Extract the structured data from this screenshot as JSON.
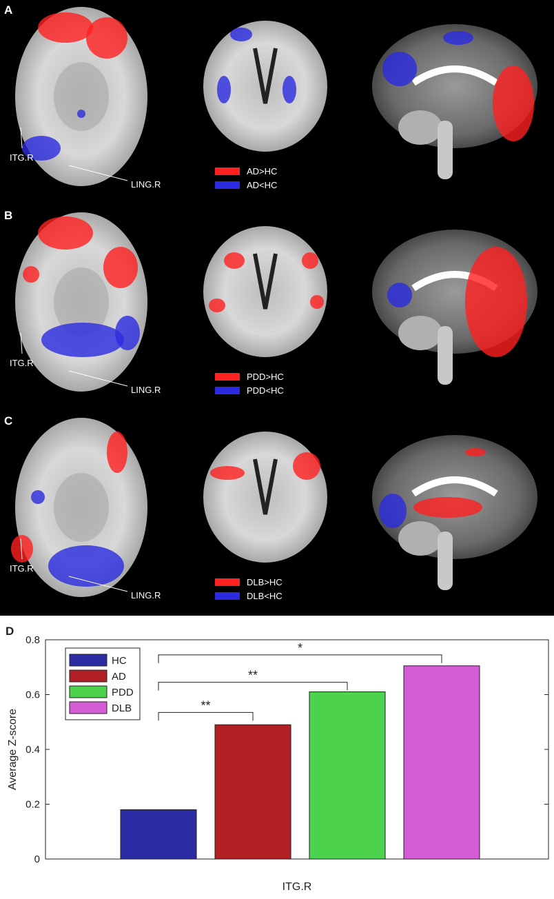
{
  "panels": [
    {
      "letter": "A",
      "label_itg": "ITG.R",
      "label_ling": "LING.R",
      "legend_up": "AD>HC",
      "legend_down": "AD<HC"
    },
    {
      "letter": "B",
      "label_itg": "ITG.R",
      "label_ling": "LING.R",
      "legend_up": "PDD>HC",
      "legend_down": "PDD<HC"
    },
    {
      "letter": "C",
      "label_itg": "ITG.R",
      "label_ling": "LING.R",
      "legend_up": "DLB>HC",
      "legend_down": "DLB<HC"
    }
  ],
  "colors": {
    "increase": "#ff2020",
    "decrease": "#2a2ae0"
  },
  "chart_data": {
    "type": "bar",
    "panel_letter": "D",
    "categories": [
      "HC",
      "AD",
      "PDD",
      "DLB"
    ],
    "values": [
      0.18,
      0.49,
      0.61,
      0.705
    ],
    "colors": [
      "#2b2ba4",
      "#b01f24",
      "#4cd24c",
      "#d45cd4"
    ],
    "xlabel": "ITG.R",
    "ylabel": "Average Z-score",
    "ylim": [
      0,
      0.8
    ],
    "yticks": [
      "0",
      "0.2",
      "0.4",
      "0.6",
      "0.8"
    ],
    "legend": [
      "HC",
      "AD",
      "PDD",
      "DLB"
    ],
    "legend_position": "top-left",
    "significance": [
      {
        "from": "HC",
        "to": "AD",
        "label": "**"
      },
      {
        "from": "HC",
        "to": "PDD",
        "label": "**"
      },
      {
        "from": "HC",
        "to": "DLB",
        "label": "*"
      }
    ]
  }
}
